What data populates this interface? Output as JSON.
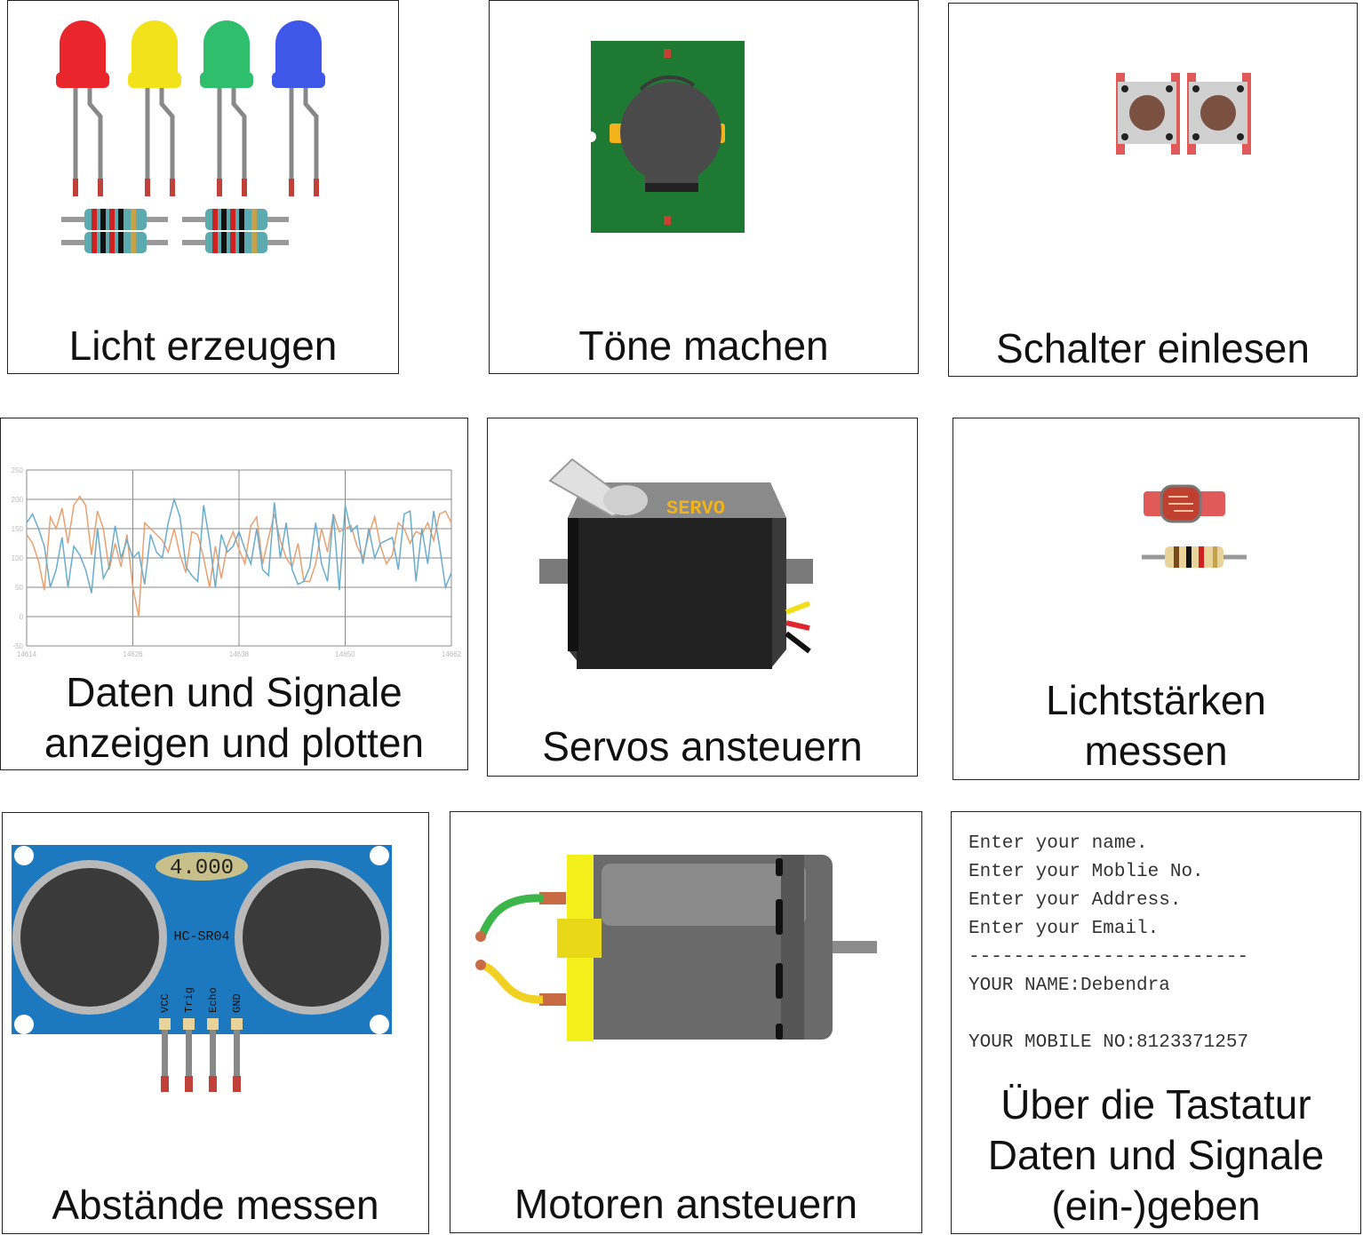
{
  "cards": [
    {
      "id": "licht",
      "caption": [
        "Licht erzeugen"
      ],
      "icon": "led-resistor-icon"
    },
    {
      "id": "toene",
      "caption": [
        "Töne machen"
      ],
      "icon": "buzzer-icon"
    },
    {
      "id": "schalter",
      "caption": [
        "Schalter einlesen"
      ],
      "icon": "push-button-icon"
    },
    {
      "id": "plot",
      "caption": [
        "Daten und Signale",
        "anzeigen und plotten"
      ],
      "icon": "signal-plot-icon"
    },
    {
      "id": "servo",
      "caption": [
        "Servos ansteuern"
      ],
      "icon": "servo-icon",
      "label": "SERVO"
    },
    {
      "id": "lichtstaerke",
      "caption": [
        "Lichtstärken",
        "messen"
      ],
      "icon": "photoresistor-icon"
    },
    {
      "id": "abstand",
      "caption": [
        "Abstände messen"
      ],
      "icon": "ultrasonic-sensor-icon",
      "sensor": {
        "display": "4.000",
        "model": "HC-SR04",
        "pins": [
          "VCC",
          "Trig",
          "Echo",
          "GND"
        ]
      }
    },
    {
      "id": "motor",
      "caption": [
        "Motoren ansteuern"
      ],
      "icon": "dc-motor-icon"
    },
    {
      "id": "tastatur",
      "caption": [
        "Über die Tastatur",
        "Daten und Signale",
        "(ein-)geben"
      ],
      "icon": "terminal-icon",
      "terminal": [
        "Enter your name.",
        "Enter your Moblie No.",
        "Enter your Address.",
        "Enter your Email.",
        "-------------------------",
        "YOUR NAME:Debendra",
        "",
        "YOUR MOBILE NO:8123371257"
      ]
    }
  ],
  "plot": {
    "yticks": [
      "250",
      "200",
      "150",
      "100",
      "50",
      "0",
      "-50"
    ],
    "xticks": [
      "14614",
      "14626",
      "14638",
      "14650",
      "14662"
    ],
    "series": [
      {
        "color": "#e8a070",
        "values": [
          140,
          125,
          95,
          45,
          170,
          150,
          185,
          125,
          190,
          205,
          190,
          105,
          180,
          150,
          80,
          125,
          85,
          140,
          50,
          0,
          160,
          150,
          140,
          130,
          110,
          150,
          105,
          75,
          145,
          140,
          100,
          50,
          120,
          65,
          120,
          145,
          115,
          90,
          155,
          170,
          90,
          135,
          175,
          130,
          100,
          85,
          125,
          60,
          60,
          90,
          150,
          110,
          175,
          145,
          150,
          155,
          120,
          100,
          140,
          170,
          120,
          90,
          105,
          160,
          150,
          125,
          145,
          140,
          160,
          130,
          175,
          180,
          160
        ]
      },
      {
        "color": "#6aaccc",
        "values": [
          160,
          175,
          150,
          120,
          50,
          80,
          135,
          50,
          120,
          105,
          80,
          40,
          150,
          65,
          85,
          155,
          100,
          130,
          100,
          110,
          55,
          140,
          110,
          100,
          160,
          200,
          170,
          85,
          70,
          60,
          190,
          130,
          50,
          140,
          110,
          120,
          145,
          115,
          90,
          150,
          80,
          70,
          195,
          100,
          160,
          80,
          55,
          60,
          85,
          160,
          90,
          60,
          175,
          45,
          190,
          145,
          155,
          90,
          150,
          100,
          125,
          130,
          135,
          80,
          175,
          180,
          60,
          150,
          90,
          180,
          120,
          50,
          75
        ]
      }
    ]
  },
  "colors": {
    "led_red": "#e8262c",
    "led_yellow": "#f2e21c",
    "led_green": "#2fbf6c",
    "led_blue": "#3f57e8",
    "pcb": "#1e7a33",
    "sensor_board": "#1c79bf",
    "motor_yellow": "#f3ef1a"
  }
}
